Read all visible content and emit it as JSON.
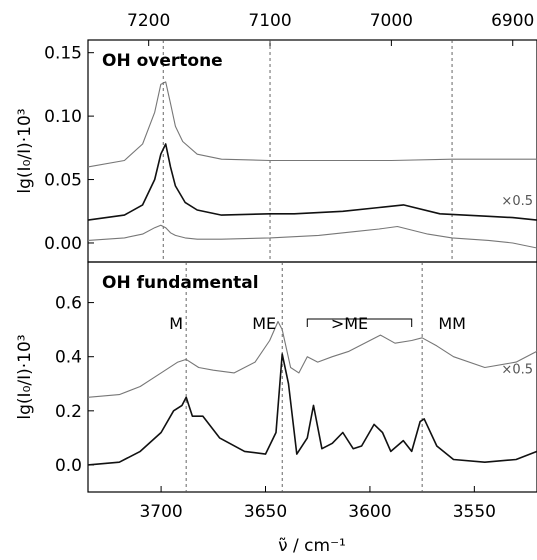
{
  "chart_data": [
    {
      "type": "line",
      "panel_title": "OH overtone",
      "ylabel": "lg(I₀/I)·10³",
      "ylim": [
        -0.015,
        0.16
      ],
      "yticks": [
        0.0,
        0.05,
        0.1,
        0.15
      ],
      "ytick_labels": [
        "0.00",
        "0.05",
        "0.10",
        "0.15"
      ],
      "xlabel_top": "",
      "xlim_top": [
        7250,
        6880
      ],
      "xticks_top": [
        7200,
        7100,
        7000,
        6900
      ],
      "xtick_labels_top": [
        "7200",
        "7100",
        "7000",
        "6900"
      ],
      "vlines": [
        7188,
        7100,
        6950
      ],
      "series": [
        {
          "scale_label": "×0.5",
          "color": "#777777",
          "x": [
            7250,
            7220,
            7205,
            7195,
            7190,
            7186,
            7182,
            7178,
            7172,
            7160,
            7140,
            7100,
            7050,
            7000,
            6950,
            6900,
            6880
          ],
          "y": [
            0.06,
            0.065,
            0.078,
            0.103,
            0.125,
            0.127,
            0.11,
            0.092,
            0.08,
            0.07,
            0.066,
            0.065,
            0.065,
            0.065,
            0.066,
            0.066,
            0.066
          ]
        },
        {
          "color": "#111111",
          "x": [
            7250,
            7220,
            7205,
            7195,
            7190,
            7186,
            7182,
            7178,
            7170,
            7160,
            7140,
            7100,
            7080,
            7040,
            7010,
            6990,
            6960,
            6940,
            6920,
            6900,
            6880
          ],
          "y": [
            0.018,
            0.022,
            0.03,
            0.05,
            0.07,
            0.078,
            0.06,
            0.045,
            0.032,
            0.026,
            0.022,
            0.023,
            0.023,
            0.025,
            0.028,
            0.03,
            0.023,
            0.022,
            0.021,
            0.02,
            0.018
          ]
        },
        {
          "color": "#777777",
          "x": [
            7250,
            7220,
            7205,
            7195,
            7190,
            7186,
            7182,
            7178,
            7170,
            7160,
            7140,
            7100,
            7060,
            7030,
            7010,
            6995,
            6970,
            6950,
            6920,
            6900,
            6880
          ],
          "y": [
            0.002,
            0.004,
            0.007,
            0.012,
            0.014,
            0.012,
            0.008,
            0.006,
            0.004,
            0.003,
            0.003,
            0.004,
            0.006,
            0.009,
            0.011,
            0.013,
            0.007,
            0.004,
            0.002,
            0.0,
            -0.004
          ]
        }
      ]
    },
    {
      "type": "line",
      "panel_title": "OH fundamental",
      "ylabel": "lg(I₀/I)·10³",
      "ylim": [
        -0.1,
        0.75
      ],
      "yticks": [
        0.0,
        0.2,
        0.4,
        0.6
      ],
      "ytick_labels": [
        "0.0",
        "0.2",
        "0.4",
        "0.6"
      ],
      "xlabel": "ν̃ / cm⁻¹",
      "xlim": [
        3735,
        3520
      ],
      "xticks": [
        3700,
        3650,
        3600,
        3550
      ],
      "xtick_labels": [
        "3700",
        "3650",
        "3600",
        "3550"
      ],
      "vlines": [
        3688,
        3642,
        3575
      ],
      "annotations": [
        {
          "text": "M",
          "x": 3688
        },
        {
          "text": "ME",
          "x": 3642
        },
        {
          "text": ">ME",
          "x": 3605
        },
        {
          "text": "MM",
          "x": 3575
        }
      ],
      "series": [
        {
          "scale_label": "×0.5",
          "color": "#777777",
          "x": [
            3735,
            3720,
            3710,
            3700,
            3692,
            3688,
            3682,
            3675,
            3665,
            3655,
            3648,
            3644,
            3642,
            3638,
            3634,
            3630,
            3625,
            3618,
            3610,
            3600,
            3595,
            3588,
            3580,
            3575,
            3568,
            3560,
            3545,
            3530,
            3520
          ],
          "y": [
            0.25,
            0.26,
            0.29,
            0.34,
            0.38,
            0.39,
            0.36,
            0.35,
            0.34,
            0.38,
            0.46,
            0.53,
            0.5,
            0.36,
            0.34,
            0.4,
            0.38,
            0.4,
            0.42,
            0.46,
            0.48,
            0.45,
            0.46,
            0.47,
            0.44,
            0.4,
            0.36,
            0.38,
            0.42
          ]
        },
        {
          "color": "#111111",
          "x": [
            3735,
            3720,
            3710,
            3700,
            3694,
            3690,
            3688,
            3685,
            3680,
            3672,
            3660,
            3650,
            3645,
            3642,
            3639,
            3635,
            3630,
            3627,
            3623,
            3618,
            3613,
            3608,
            3604,
            3598,
            3594,
            3590,
            3584,
            3580,
            3576,
            3574,
            3568,
            3560,
            3545,
            3530,
            3520
          ],
          "y": [
            0.0,
            0.01,
            0.05,
            0.12,
            0.2,
            0.22,
            0.25,
            0.18,
            0.18,
            0.1,
            0.05,
            0.04,
            0.12,
            0.41,
            0.3,
            0.04,
            0.1,
            0.22,
            0.06,
            0.08,
            0.12,
            0.06,
            0.07,
            0.15,
            0.12,
            0.05,
            0.09,
            0.05,
            0.16,
            0.17,
            0.07,
            0.02,
            0.01,
            0.02,
            0.05
          ]
        }
      ]
    }
  ]
}
